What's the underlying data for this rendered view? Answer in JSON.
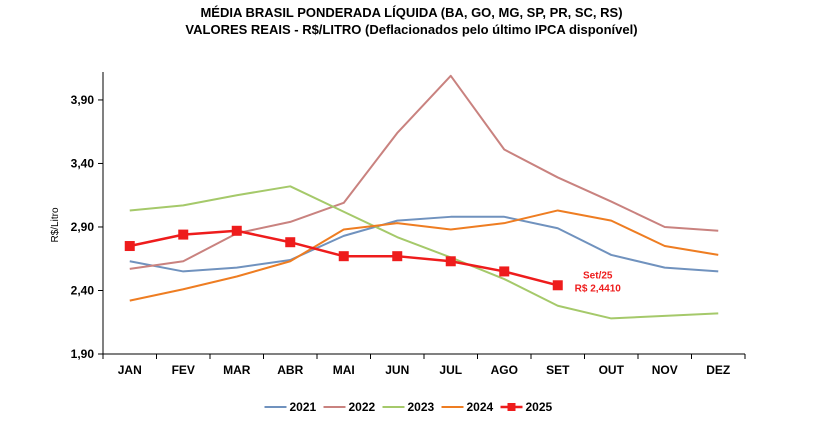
{
  "chart_data": {
    "type": "line",
    "title": "MÉDIA BRASIL PONDERADA LÍQUIDA (BA, GO, MG, SP, PR, SC, RS)",
    "subtitle": "VALORES REAIS - R$/LITRO (Deflacionados pelo último IPCA disponível)",
    "ylabel": "R$/Litro",
    "xlabel": "",
    "categories": [
      "JAN",
      "FEV",
      "MAR",
      "ABR",
      "MAI",
      "JUN",
      "JUL",
      "AGO",
      "SET",
      "OUT",
      "NOV",
      "DEZ"
    ],
    "yticks": [
      "1,90",
      "2,40",
      "2,90",
      "3,40",
      "3,90"
    ],
    "ylim": [
      1.9,
      4.12
    ],
    "grid": false,
    "legend_position": "bottom",
    "series": [
      {
        "name": "2021",
        "color": "#7092be",
        "marker": "none",
        "values": [
          2.63,
          2.55,
          2.58,
          2.64,
          2.83,
          2.95,
          2.98,
          2.98,
          2.89,
          2.68,
          2.58,
          2.55
        ]
      },
      {
        "name": "2022",
        "color": "#c9827f",
        "marker": "none",
        "values": [
          2.57,
          2.63,
          2.85,
          2.94,
          3.09,
          3.64,
          4.09,
          3.51,
          3.29,
          3.1,
          2.9,
          2.87
        ]
      },
      {
        "name": "2023",
        "color": "#a5c96a",
        "marker": "none",
        "values": [
          3.03,
          3.07,
          3.15,
          3.22,
          3.02,
          2.82,
          2.66,
          2.49,
          2.28,
          2.18,
          2.2,
          2.22
        ]
      },
      {
        "name": "2024",
        "color": "#ee7d22",
        "marker": "none",
        "values": [
          2.32,
          2.41,
          2.51,
          2.63,
          2.88,
          2.93,
          2.88,
          2.93,
          3.03,
          2.95,
          2.75,
          2.68
        ]
      },
      {
        "name": "2025",
        "color": "#ee1c1c",
        "marker": "square",
        "values": [
          2.75,
          2.84,
          2.87,
          2.78,
          2.67,
          2.67,
          2.63,
          2.55,
          2.441,
          null,
          null,
          null
        ]
      }
    ],
    "annotations": [
      {
        "series": "2025",
        "point": "SET",
        "lines": [
          "Set/25",
          "R$ 2,4410"
        ],
        "color": "#ee1c1c"
      }
    ]
  }
}
